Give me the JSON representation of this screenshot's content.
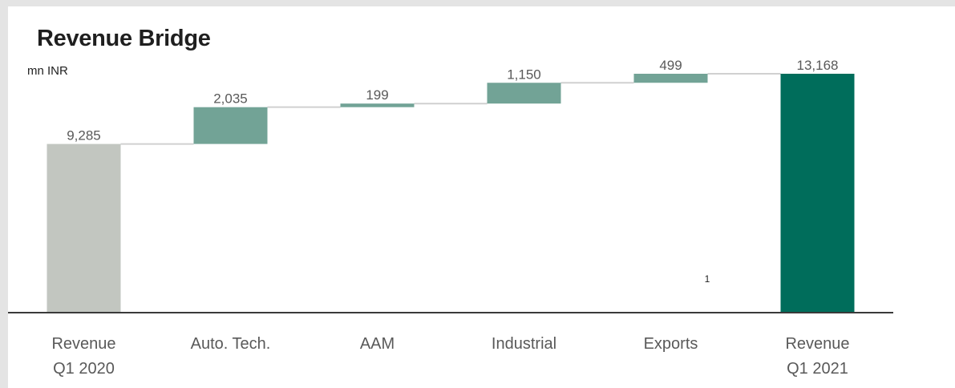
{
  "chart_data": {
    "type": "bar",
    "subtype": "waterfall",
    "title": "Revenue Bridge",
    "unit": "mn INR",
    "categories": [
      [
        "Revenue",
        "Q1 2020"
      ],
      [
        "Auto. Tech."
      ],
      [
        "AAM"
      ],
      [
        "Industrial"
      ],
      [
        "Exports"
      ],
      [
        "Revenue",
        "Q1 2021"
      ]
    ],
    "values": [
      9285,
      2035,
      199,
      1150,
      499,
      13168
    ],
    "value_labels": [
      "9,285",
      "2,035",
      "199",
      "1,150",
      "499",
      "13,168"
    ],
    "bar_kinds": [
      "total",
      "delta",
      "delta",
      "delta",
      "delta",
      "total"
    ],
    "colors": {
      "start_total": "#c2c6c0",
      "delta": "#72a396",
      "end_total": "#006d5b",
      "connector": "#d0d0d0",
      "axis": "#3a3a3a"
    },
    "footnote_marker": "1",
    "ylim": [
      0,
      13168
    ],
    "grid": false,
    "legend": "none"
  }
}
